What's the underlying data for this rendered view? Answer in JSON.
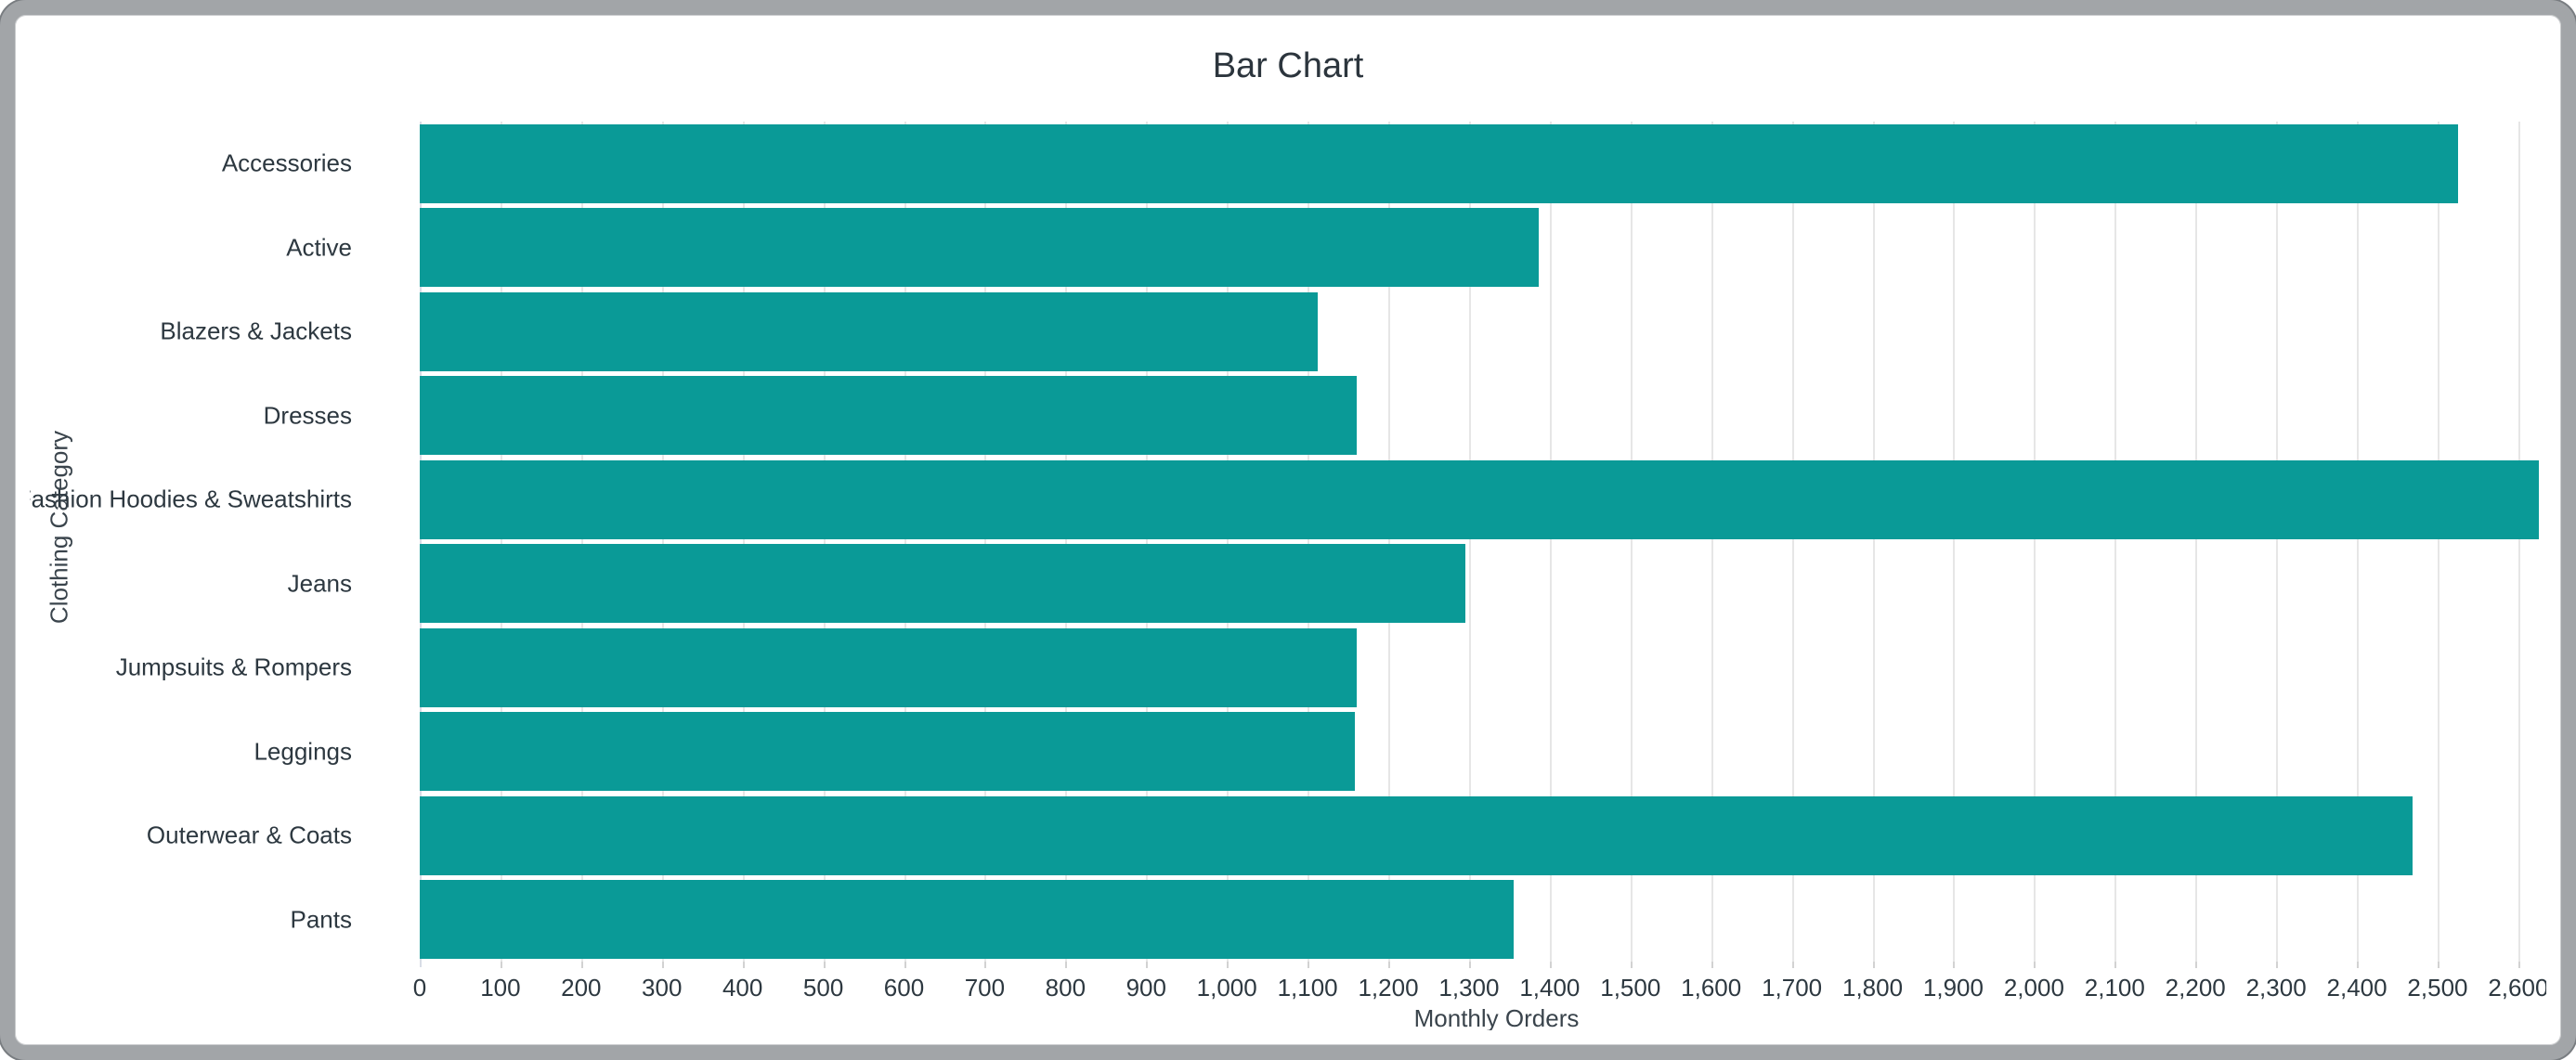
{
  "window": {
    "frame_color": "#a2a5a8",
    "background_color": "#ffffff"
  },
  "chart_data": {
    "type": "bar",
    "orientation": "horizontal",
    "title": "Bar Chart",
    "xlabel": "Monthly Orders",
    "ylabel": "Clothing Category",
    "categories": [
      "Accessories",
      "Active",
      "Blazers & Jackets",
      "Dresses",
      "Fashion Hoodies & Sweatshirts",
      "Jeans",
      "Jumpsuits & Rompers",
      "Leggings",
      "Outerwear & Coats",
      "Pants"
    ],
    "values": [
      2525,
      1386,
      1112,
      1161,
      2626,
      1295,
      1161,
      1158,
      2469,
      1355
    ],
    "xlim": [
      0,
      2668
    ],
    "x_tick_step": 100,
    "x_tick_max": 2600,
    "bar_color": "#0a9a97",
    "gridline_color": "#e6e6e6",
    "grid": true,
    "legend": false
  }
}
